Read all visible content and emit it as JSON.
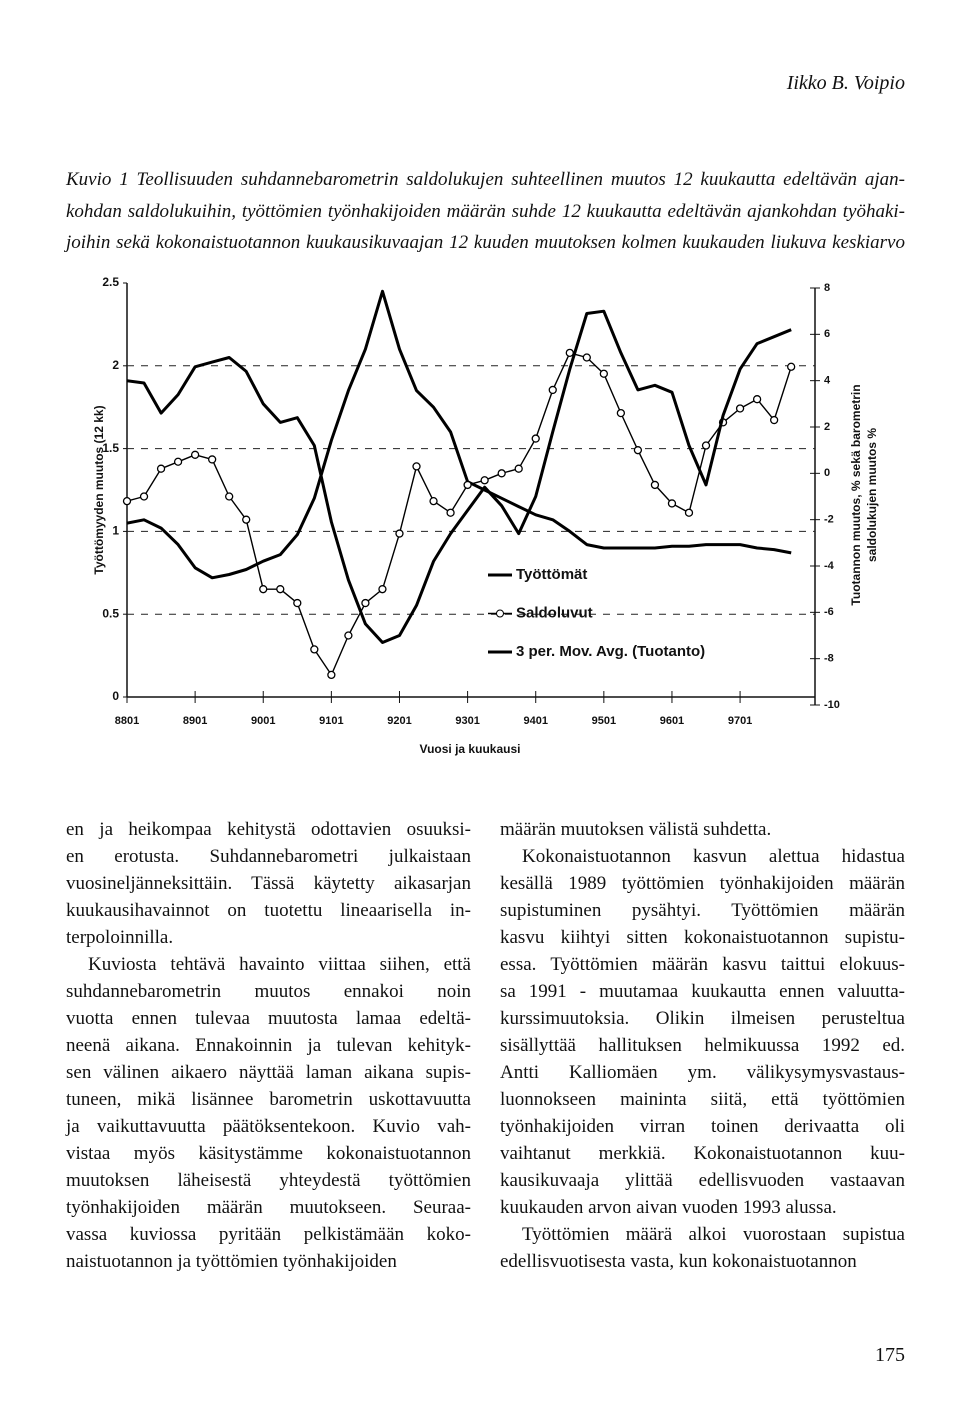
{
  "header": {
    "author": "Iikko B. Voipio"
  },
  "caption": [
    "Kuvio 1 Teollisuuden suhdannebarometrin saldolukujen suhteellinen muutos 12 kuukautta edeltävän ajan-",
    "kohdan saldolukuihin, työttömien työnhakijoiden määrän suhde 12 kuukautta edeltävän ajankohdan työhaki-",
    "joihin sekä kokonaistuotannon kuukausikuvaajan 12 kuuden muutoksen kolmen kuukauden liukuva keskiarvo"
  ],
  "chart_data": {
    "type": "line",
    "xlabel": "Vuosi ja kuukausi",
    "ylabel": "Työttömyyden muutos (12 kk)",
    "y2label": [
      "Tuotannon muutos, % sekä barometrin",
      "saldolukujen muutos %"
    ],
    "categories": [
      "8801",
      null,
      null,
      null,
      "8901",
      null,
      null,
      null,
      "9001",
      null,
      null,
      null,
      "9101",
      null,
      null,
      null,
      "9201",
      null,
      null,
      null,
      "9301",
      null,
      null,
      null,
      "9401",
      null,
      null,
      null,
      "9501",
      null,
      null,
      null,
      "9601",
      null,
      null,
      null,
      "9701",
      null,
      null,
      null
    ],
    "series": [
      {
        "name": "Työttömät",
        "color": "#000000",
        "values": [
          1.05,
          1.07,
          1.02,
          0.92,
          0.78,
          0.72,
          0.74,
          0.77,
          0.82,
          0.86,
          0.98,
          1.2,
          1.55,
          1.85,
          2.1,
          2.45,
          2.1,
          1.85,
          1.75,
          1.6,
          1.3,
          1.25,
          1.2,
          1.15,
          1.1,
          1.07,
          1.0,
          0.92,
          0.9,
          0.9,
          0.9,
          0.9,
          0.91,
          0.91,
          0.92,
          0.92,
          0.92,
          0.9,
          0.89,
          0.87
        ]
      },
      {
        "name": "Saldoluvut",
        "color": "#000000",
        "axis": "y2",
        "marker": "circle",
        "values": [
          -1.2,
          -1.0,
          0.2,
          0.5,
          0.8,
          0.6,
          -1.0,
          -2.0,
          -5.0,
          -5.0,
          -5.6,
          -7.6,
          -8.7,
          -7.0,
          -5.6,
          -5.0,
          -2.6,
          0.3,
          -1.2,
          -1.7,
          -0.5,
          -0.3,
          0.0,
          0.2,
          1.5,
          3.6,
          5.2,
          5.0,
          4.3,
          2.6,
          1.0,
          -0.5,
          -1.3,
          -1.7,
          1.2,
          2.2,
          2.8,
          3.2,
          2.3,
          4.6
        ]
      },
      {
        "name": "3 per. Mov. Avg. (Tuotanto)",
        "color": "#000000",
        "axis": "y2",
        "values": [
          4.0,
          3.9,
          2.6,
          3.4,
          4.6,
          4.8,
          5.0,
          4.4,
          3.0,
          2.2,
          2.4,
          1.2,
          -2.1,
          -4.6,
          -6.5,
          -7.3,
          -7.0,
          -5.7,
          -3.8,
          -2.6,
          -1.6,
          -0.6,
          -1.4,
          -2.6,
          -1.0,
          1.8,
          4.5,
          6.9,
          7.0,
          5.2,
          3.6,
          3.8,
          3.5,
          1.2,
          -0.5,
          2.5,
          4.5,
          5.6,
          5.9,
          6.2
        ]
      }
    ],
    "ylim": [
      0,
      2.5
    ],
    "yticks": [
      0,
      0.5,
      1,
      1.5,
      2,
      2.5
    ],
    "y2lim": [
      -10,
      8
    ],
    "y2ticks": [
      -10,
      -8,
      -6,
      -4,
      -2,
      0,
      2,
      4,
      6,
      8
    ],
    "grid": true
  },
  "body": {
    "columns": [
      [
        [
          "en ja heikompaa kehitystä odottavien osuuksi-",
          "en erotusta. Suhdannebarometri julkaistaan",
          "vuosineljänneksittäin. Tässä käytetty aikasarjan",
          "kuukausihavainnot on tuotettu lineaarisella in-",
          "terpoloinnilla."
        ],
        [
          "Kuviosta tehtävä havainto viittaa siihen, että",
          "suhdannebarometrin muutos ennakoi noin",
          "vuotta ennen tulevaa muutosta lamaa edeltä-",
          "neenä aikana. Ennakoinnin ja tulevan kehityk-",
          "sen välinen aikaero näyttää laman aikana supis-",
          "tuneen, mikä lisännee barometrin uskottavuutta",
          "ja vaikuttavuutta päätöksentekoon. Kuvio vah-",
          "vistaa myös käsitystämme kokonaistuotannon",
          "muutoksen läheisestä yhteydestä työttömien",
          "työnhakijoiden määrän muutokseen. Seuraa-",
          "vassa kuviossa pyritään pelkistämään koko-",
          "naistuotannon ja työttömien työnhakijoiden"
        ]
      ],
      [
        [
          "määrän muutoksen välistä suhdetta."
        ],
        [
          "Kokonaistuotannon kasvun alettua hidastua",
          "kesällä 1989 työttömien työnhakijoiden määrän",
          "supistuminen pysähtyi. Työttömien määrän",
          "kasvu kiihtyi sitten kokonaistuotannon supistu-",
          "essa. Työttömien määrän kasvu taittui elokuus-",
          "sa 1991 - muutamaa kuukautta ennen valuutta-",
          "kurssimuutoksia. Olikin ilmeisen perusteltua",
          "sisällyttää hallituksen helmikuussa 1992 ed.",
          "Antti Kalliomäen ym. välikysymysvastaus-",
          "luonnokseen maininta siitä, että työttömien",
          "työnhakijoiden virran toinen derivaatta oli",
          "vaihtanut merkkiä. Kokonaistuotannon kuu-",
          "kausikuvaaja ylittää edellisvuoden vastaavan",
          "kuukauden arvon aivan vuoden 1993 alussa."
        ],
        [
          "Työttömien määrä alkoi vuorostaan supistua",
          "edellisvuotisesta vasta, kun kokonaistuotannon"
        ]
      ]
    ]
  },
  "page_number": "175"
}
